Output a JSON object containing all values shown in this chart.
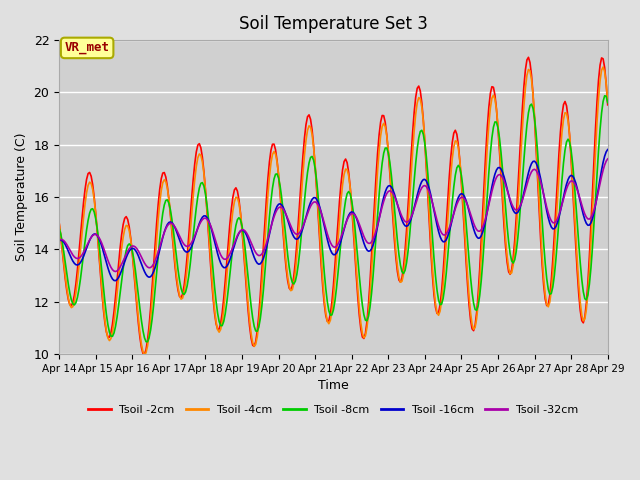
{
  "title": "Soil Temperature Set 3",
  "xlabel": "Time",
  "ylabel": "Soil Temperature (C)",
  "ylim": [
    10,
    22
  ],
  "xlim": [
    0,
    360
  ],
  "background_color": "#e0e0e0",
  "plot_bg_color": "#d0d0d0",
  "annotation_text": "VR_met",
  "annotation_facecolor": "#ffff99",
  "annotation_edgecolor": "#aaaa00",
  "annotation_textcolor": "#990000",
  "tick_labels": [
    "Apr 14",
    "Apr 15",
    "Apr 16",
    "Apr 17",
    "Apr 18",
    "Apr 19",
    "Apr 20",
    "Apr 21",
    "Apr 22",
    "Apr 23",
    "Apr 24",
    "Apr 25",
    "Apr 26",
    "Apr 27",
    "Apr 28",
    "Apr 29"
  ],
  "tick_positions": [
    0,
    24,
    48,
    72,
    96,
    120,
    144,
    168,
    192,
    216,
    240,
    264,
    288,
    312,
    336,
    360
  ],
  "legend_labels": [
    "Tsoil -2cm",
    "Tsoil -4cm",
    "Tsoil -8cm",
    "Tsoil -16cm",
    "Tsoil -32cm"
  ],
  "line_colors": [
    "#ff0000",
    "#ff8800",
    "#00cc00",
    "#0000cc",
    "#aa00aa"
  ],
  "grid_color": "#ffffff",
  "yticks": [
    10,
    12,
    14,
    16,
    18,
    20,
    22
  ]
}
